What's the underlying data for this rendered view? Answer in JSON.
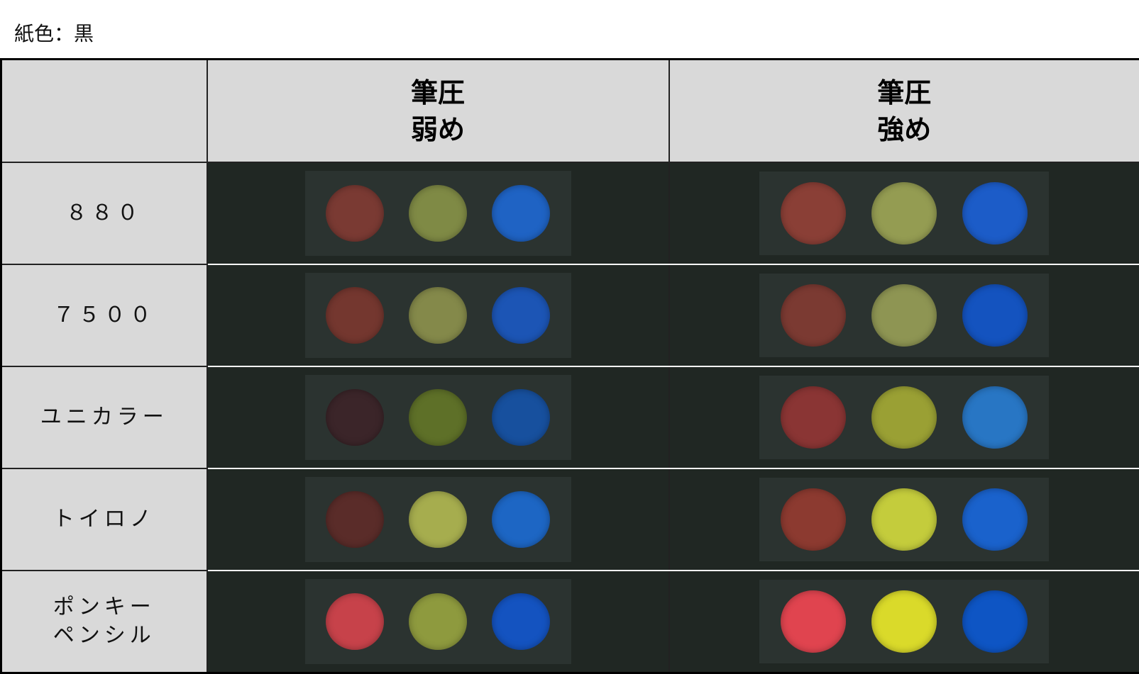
{
  "caption": "紙色：黒",
  "headers": [
    "",
    "筆圧\n弱め",
    "筆圧\n強め"
  ],
  "rows": [
    {
      "label": "８８０",
      "weak": [
        "#7a3a33",
        "#7f8a45",
        "#1f63c4"
      ],
      "strong": [
        "#8a3f36",
        "#949c52",
        "#1c5cc8"
      ]
    },
    {
      "label": "７５００",
      "weak": [
        "#74372f",
        "#84894a",
        "#1c55b5"
      ],
      "strong": [
        "#7b3a32",
        "#8e9553",
        "#1453bf"
      ]
    },
    {
      "label": "ユニカラー",
      "weak": [
        "#3b2529",
        "#5e7028",
        "#17509e"
      ],
      "strong": [
        "#8a3534",
        "#9aa034",
        "#2876c4"
      ]
    },
    {
      "label": "トイロノ",
      "weak": [
        "#5a2c29",
        "#a6ad4e",
        "#1d66c4"
      ],
      "strong": [
        "#8c3a30",
        "#c4cc3c",
        "#1a62cc"
      ]
    },
    {
      "label": "ポンキー\nペンシル",
      "weak": [
        "#c7424a",
        "#8e9a3e",
        "#1453c0"
      ],
      "strong": [
        "#e0444f",
        "#dada2a",
        "#0e55c4"
      ]
    }
  ]
}
